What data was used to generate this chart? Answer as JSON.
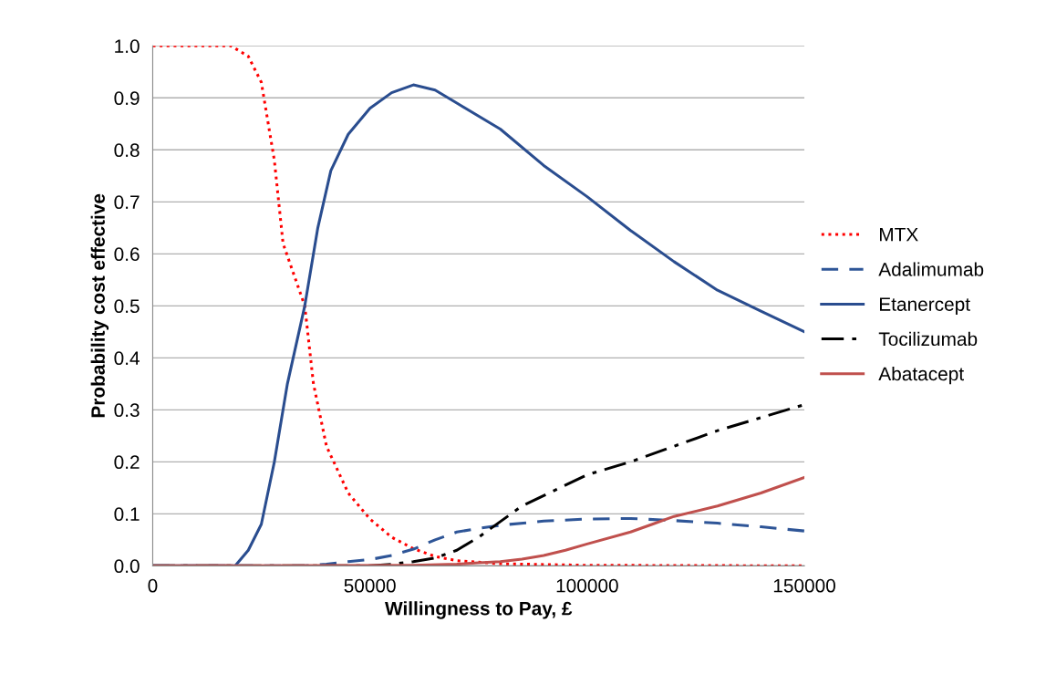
{
  "chart_data": {
    "type": "line",
    "xlabel": "Willingness to Pay, £",
    "ylabel": "Probability cost effective",
    "xlim": [
      0,
      150000
    ],
    "xticks": [
      0,
      50000,
      100000,
      150000
    ],
    "ylim": [
      0,
      1
    ],
    "yticks": [
      {
        "value": 0,
        "label": "0.0"
      },
      {
        "value": 0.1,
        "label": "0.1"
      },
      {
        "value": 0.2,
        "label": "0.2"
      },
      {
        "value": 0.3,
        "label": "0.3"
      },
      {
        "value": 0.4,
        "label": "0.4"
      },
      {
        "value": 0.5,
        "label": "0.5"
      },
      {
        "value": 0.6,
        "label": "0.6"
      },
      {
        "value": 0.7,
        "label": "0.7"
      },
      {
        "value": 0.8,
        "label": "0.8"
      },
      {
        "value": 0.9,
        "label": "0.9"
      },
      {
        "value": 1,
        "label": "1.0"
      }
    ],
    "grid": "y",
    "legend": "right",
    "marker": "none",
    "series": [
      {
        "name": "MTX",
        "color": "#ff0000",
        "line_style": "dotted",
        "x": [
          0,
          18000,
          22000,
          25000,
          28000,
          30000,
          35000,
          37000,
          40000,
          45000,
          50000,
          55000,
          60000,
          65000,
          70000,
          80000,
          100000,
          150000
        ],
        "values": [
          1.0,
          1.0,
          0.98,
          0.93,
          0.78,
          0.62,
          0.5,
          0.35,
          0.23,
          0.14,
          0.09,
          0.055,
          0.033,
          0.018,
          0.01,
          0.004,
          0.001,
          0.0
        ]
      },
      {
        "name": "Adalimumab",
        "color": "#2e5597",
        "line_style": "dashed",
        "x": [
          0,
          35000,
          40000,
          45000,
          50000,
          55000,
          60000,
          65000,
          70000,
          75000,
          80000,
          90000,
          100000,
          110000,
          120000,
          130000,
          140000,
          150000
        ],
        "values": [
          0,
          0,
          0.003,
          0.008,
          0.012,
          0.02,
          0.032,
          0.05,
          0.065,
          0.072,
          0.078,
          0.086,
          0.09,
          0.091,
          0.087,
          0.082,
          0.075,
          0.067
        ]
      },
      {
        "name": "Etanercept",
        "color": "#2a4d8f",
        "line_style": "solid",
        "x": [
          0,
          19000,
          22000,
          25000,
          28000,
          31000,
          35000,
          38000,
          41000,
          45000,
          50000,
          55000,
          60000,
          65000,
          70000,
          80000,
          90000,
          100000,
          110000,
          120000,
          130000,
          140000,
          150000
        ],
        "values": [
          0,
          0,
          0.03,
          0.08,
          0.2,
          0.35,
          0.5,
          0.65,
          0.76,
          0.83,
          0.88,
          0.91,
          0.925,
          0.915,
          0.89,
          0.84,
          0.77,
          0.71,
          0.645,
          0.585,
          0.53,
          0.49,
          0.45
        ]
      },
      {
        "name": "Tocilizumab",
        "color": "#000000",
        "line_style": "dashdot",
        "x": [
          0,
          50000,
          55000,
          60000,
          65000,
          70000,
          75000,
          80000,
          85000,
          90000,
          95000,
          100000,
          110000,
          120000,
          130000,
          140000,
          150000
        ],
        "values": [
          0,
          0,
          0.003,
          0.008,
          0.015,
          0.03,
          0.055,
          0.085,
          0.115,
          0.135,
          0.155,
          0.175,
          0.2,
          0.23,
          0.26,
          0.285,
          0.31
        ]
      },
      {
        "name": "Abatacept",
        "color": "#c0504d",
        "line_style": "solid",
        "x": [
          0,
          60000,
          70000,
          75000,
          80000,
          85000,
          90000,
          95000,
          100000,
          110000,
          115000,
          120000,
          130000,
          140000,
          150000
        ],
        "values": [
          0,
          0.001,
          0.003,
          0.006,
          0.008,
          0.013,
          0.02,
          0.03,
          0.042,
          0.065,
          0.08,
          0.095,
          0.115,
          0.14,
          0.17
        ]
      }
    ]
  }
}
